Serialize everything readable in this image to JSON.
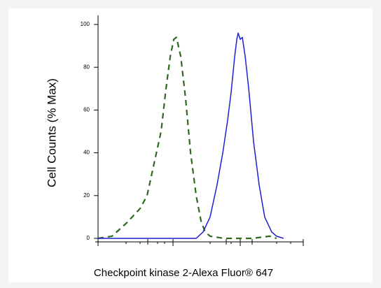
{
  "chart_data": {
    "type": "line",
    "y_label": "Cell Counts (% Max)",
    "x_label": "Checkpoint kinase 2-Alexa Fluor® 647",
    "xlim": [
      0,
      100
    ],
    "ylim": [
      0,
      100
    ],
    "yticks": [
      0,
      20,
      40,
      60,
      80,
      100
    ],
    "series": [
      {
        "color": "#2d6a1f",
        "dashed": true,
        "x": [
          0,
          6.8,
          13.7,
          20.5,
          23.9,
          27.3,
          30.7,
          33.1,
          35.2,
          36.9,
          38.2,
          40.3,
          42.7,
          45.1,
          47.8,
          50.2,
          52.2,
          54.6,
          61.4,
          75.1,
          83.6,
          87.0
        ],
        "values": [
          0,
          1,
          7,
          14,
          20,
          35,
          50,
          70,
          85,
          93,
          94,
          85,
          65,
          40,
          20,
          8,
          3,
          1,
          0,
          0,
          1,
          0
        ]
      },
      {
        "color": "#1f1fd2",
        "dashed": false,
        "x": [
          0,
          47.8,
          51.2,
          54.6,
          58.0,
          60.8,
          63.1,
          64.8,
          66.6,
          67.6,
          68.3,
          69.3,
          70.3,
          71.7,
          73.4,
          75.8,
          78.5,
          81.2,
          84.6,
          87.0,
          90.4
        ],
        "values": [
          0,
          0,
          3,
          10,
          25,
          40,
          55,
          68,
          85,
          93,
          96,
          93,
          94,
          85,
          70,
          45,
          25,
          10,
          3,
          1,
          0
        ]
      }
    ]
  }
}
